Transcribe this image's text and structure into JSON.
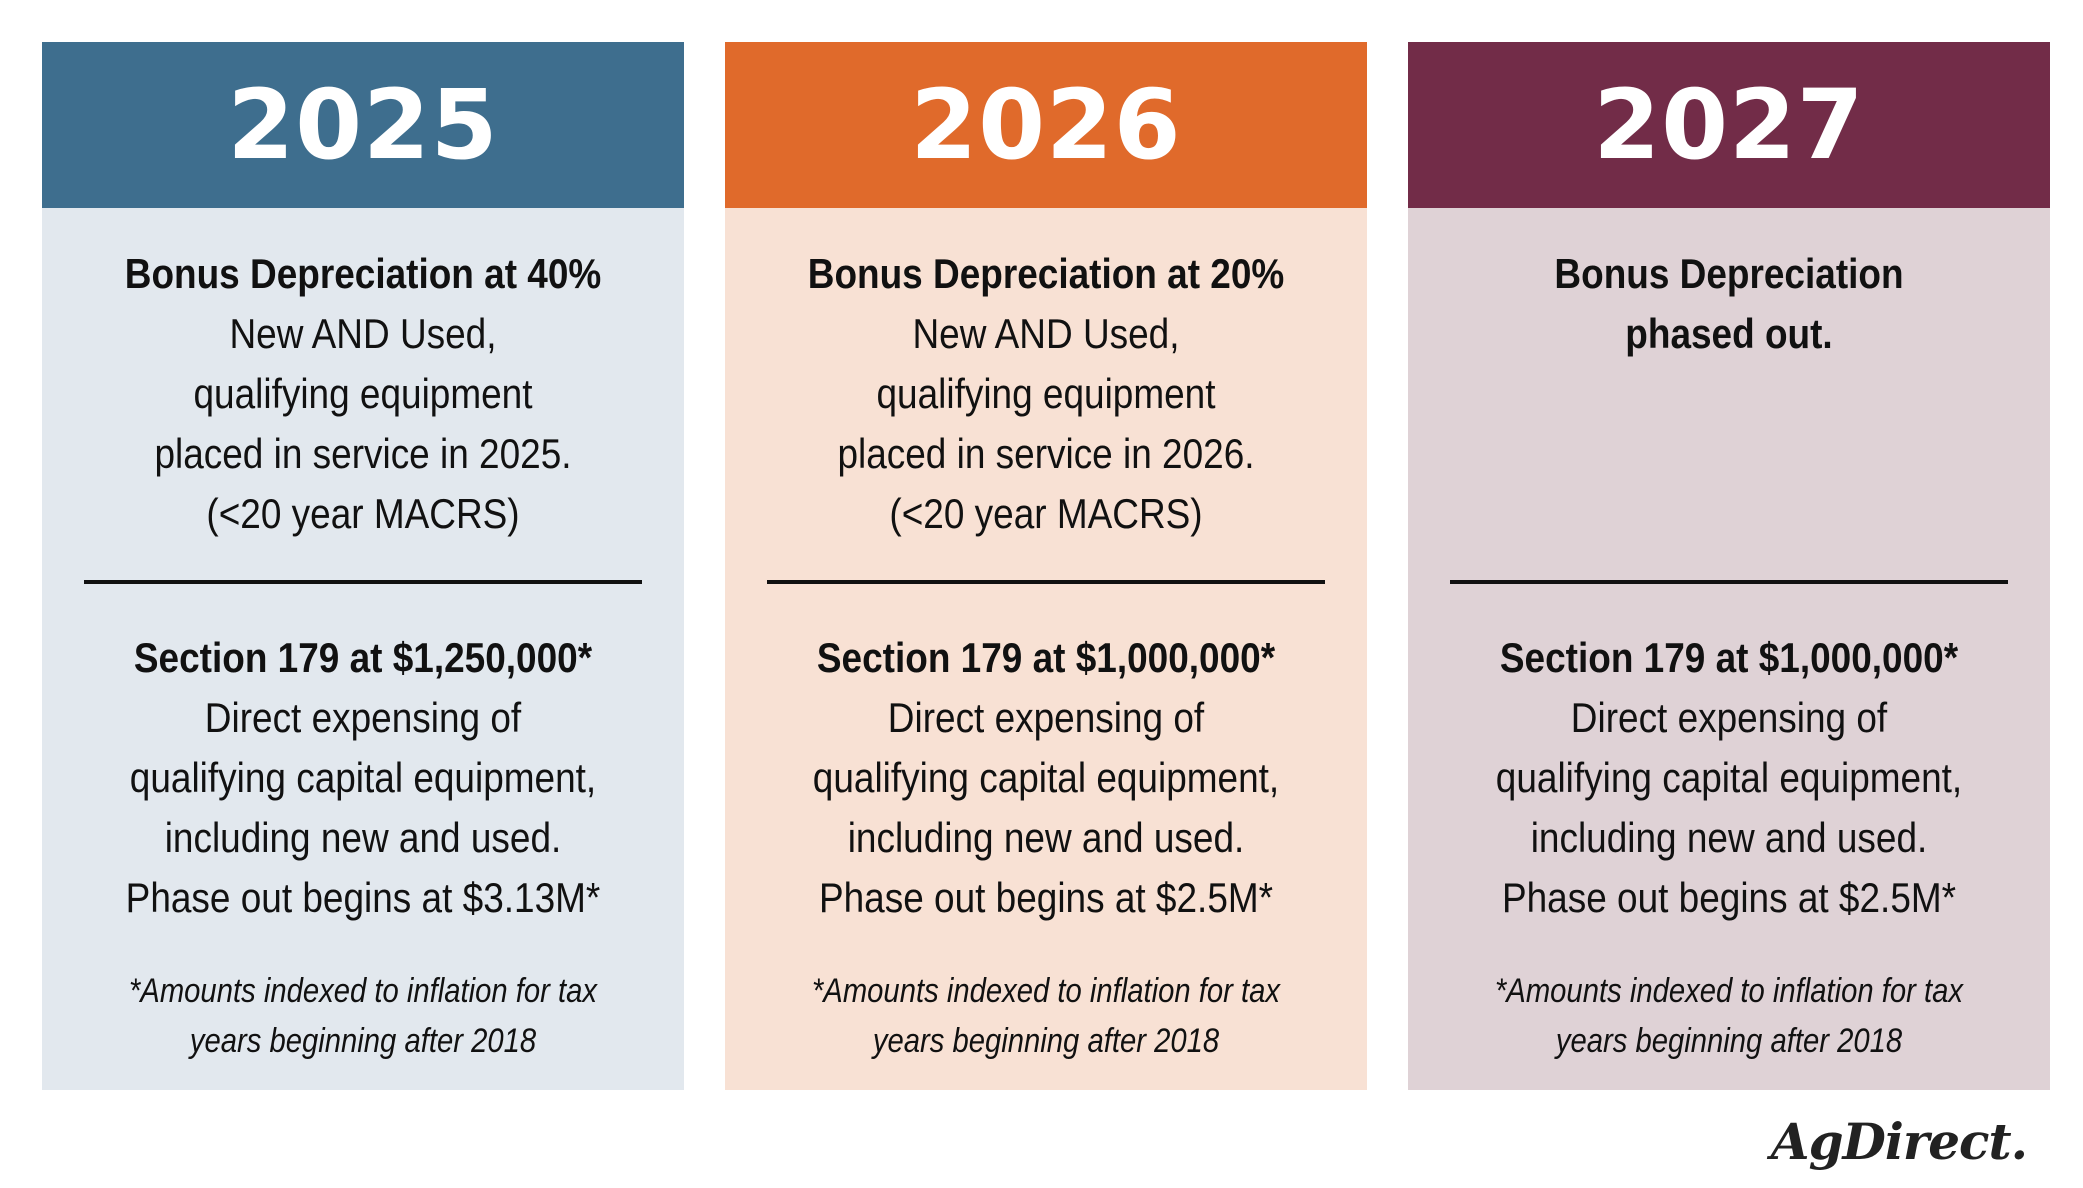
{
  "colors": {
    "card_1_header": "#3e6e8e",
    "card_1_body": "#e2e8ee",
    "card_2_header": "#e06a2b",
    "card_2_body": "#f8e1d4",
    "card_3_header": "#722c48",
    "card_3_body": "#dfd2d6",
    "text": "#111111"
  },
  "cards": [
    {
      "year": "2025",
      "bonus_heading": "Bonus Depreciation at 40%",
      "bonus_lines": [
        "New AND Used,",
        "qualifying equipment",
        "placed in service in 2025.",
        "(<20 year MACRS)"
      ],
      "section_heading": "Section 179 at $1,250,000*",
      "section_lines": [
        "Direct expensing of",
        "qualifying capital equipment,",
        "including new and used.",
        "Phase out begins at $3.13M*"
      ],
      "footnote_lines": [
        "*Amounts indexed to inflation for tax",
        "years beginning after 2018"
      ]
    },
    {
      "year": "2026",
      "bonus_heading": "Bonus Depreciation at 20%",
      "bonus_lines": [
        "New AND Used,",
        "qualifying equipment",
        "placed in service in 2026.",
        "(<20 year MACRS)"
      ],
      "section_heading": "Section 179 at $1,000,000*",
      "section_lines": [
        "Direct expensing of",
        "qualifying capital equipment,",
        "including new and used.",
        "Phase out begins at $2.5M*"
      ],
      "footnote_lines": [
        "*Amounts indexed to inflation for tax",
        "years beginning after 2018"
      ]
    },
    {
      "year": "2027",
      "bonus_heading_lines": [
        "Bonus Depreciation",
        "phased out."
      ],
      "section_heading": "Section 179 at $1,000,000*",
      "section_lines": [
        "Direct expensing of",
        "qualifying capital equipment,",
        "including new and used.",
        "Phase out begins at $2.5M*"
      ],
      "footnote_lines": [
        "*Amounts indexed to inflation for tax",
        "years beginning after 2018"
      ]
    }
  ],
  "logo": "AgDirect."
}
